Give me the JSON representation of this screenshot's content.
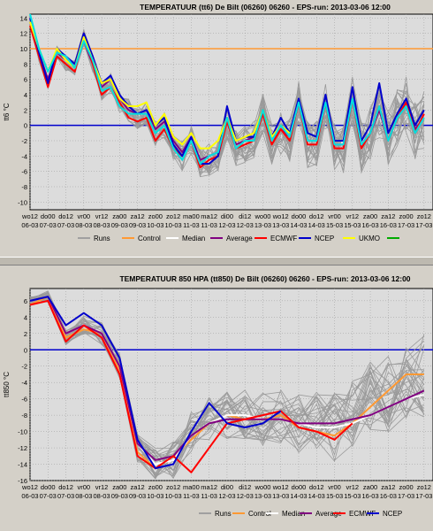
{
  "chart_data": [
    {
      "type": "line",
      "title": "TEMPERATUUR (tt6) De Bilt (06260) 06260 - EPS-run: 2013-03-06 12:00",
      "ylabel": "tt6 °C",
      "xlabel": "",
      "ylim": [
        -11,
        14.5
      ],
      "yticks": [
        14,
        12,
        10,
        8,
        6,
        4,
        2,
        0,
        -2,
        -4,
        -6,
        -8,
        -10
      ],
      "grid": true,
      "x_ticks_top": [
        "wo12",
        "do00",
        "do12",
        "vr00",
        "vr12",
        "za00",
        "za12",
        "zo00",
        "zo12",
        "ma00",
        "ma12",
        "di00",
        "di12",
        "wo00",
        "wo12",
        "do00",
        "do12",
        "vr00",
        "vr12",
        "za00",
        "za12",
        "zo00",
        "zo12"
      ],
      "x_ticks_bottom": [
        "06-03",
        "07-03",
        "07-03",
        "08-03",
        "08-03",
        "09-03",
        "09-03",
        "10-03",
        "10-03",
        "11-03",
        "11-03",
        "12-03",
        "12-03",
        "13-03",
        "13-03",
        "14-03",
        "14-03",
        "15-03",
        "15-03",
        "16-03",
        "16-03",
        "17-03",
        "17-03"
      ],
      "legend": [
        "Runs",
        "Control",
        "Median",
        "Average",
        "ECMWF",
        "NCEP",
        "UKMO",
        ""
      ],
      "legend_colors": [
        "#a0a0a0",
        "#ff9933",
        "#ffffff",
        "#800080",
        "#ff0000",
        "#0000cc",
        "#ffff00",
        "#00aa00"
      ],
      "hlines": [
        {
          "y": 10,
          "color": "#ff9933"
        },
        {
          "y": 0,
          "color": "#0000cc"
        }
      ],
      "series": [
        {
          "name": "Runs",
          "color": "#a0a0a0",
          "x": [
            0,
            1,
            2,
            3,
            4,
            5,
            6,
            7,
            8,
            9,
            10,
            11,
            12,
            13,
            14,
            15,
            16,
            17,
            18,
            19,
            20,
            21,
            22,
            23,
            24,
            25,
            26,
            27,
            28,
            29,
            30,
            31,
            32,
            33,
            34,
            35,
            36,
            37,
            38,
            39,
            40,
            41,
            42,
            43,
            44
          ],
          "values": [
            13.5,
            9,
            5.5,
            9.5,
            8,
            7.5,
            11.5,
            8,
            4.5,
            5.5,
            3,
            2,
            1,
            1.5,
            -1,
            0,
            -3,
            -4,
            -2,
            -5,
            -4.5,
            -4,
            0.5,
            -3,
            -2.5,
            -2,
            1.5,
            -2.5,
            -1,
            -2,
            3,
            -2.5,
            -2.5,
            2.5,
            -3,
            -3,
            3,
            -3,
            -1,
            2,
            -2,
            1,
            2.5,
            -1,
            0.5
          ]
        },
        {
          "name": "Median",
          "color": "#ffffff",
          "x": [
            0,
            1,
            2,
            3,
            4,
            5,
            6,
            7,
            8,
            9,
            10,
            11,
            12,
            13,
            14,
            15,
            16,
            17,
            18,
            19,
            20,
            21,
            22,
            23,
            24,
            25,
            26,
            27,
            28,
            29,
            30,
            31,
            32,
            33,
            34,
            35,
            36,
            37,
            38,
            39,
            40,
            41,
            42,
            43,
            44
          ],
          "values": [
            13.5,
            9.5,
            6,
            9.5,
            8.5,
            7.5,
            11,
            8,
            5,
            6,
            3.5,
            2,
            1.5,
            2,
            -0.5,
            0.5,
            -2,
            -3.5,
            -1.5,
            -4.5,
            -4,
            -3.5,
            1,
            -2.5,
            -2,
            -1.5,
            2,
            -2,
            -0.5,
            -1.5,
            3,
            -2,
            -2,
            3,
            -2.5,
            -2.5,
            3.5,
            -2.5,
            -1,
            2,
            -2,
            1,
            3,
            -0.5,
            1
          ]
        },
        {
          "name": "Average",
          "color": "#800080",
          "x": [
            0,
            1,
            2,
            3,
            4,
            5,
            6,
            7,
            8,
            9,
            10,
            11,
            12,
            13,
            14,
            15,
            16,
            17,
            18,
            19,
            20,
            21,
            22,
            23,
            24,
            25,
            26,
            27,
            28,
            29,
            30,
            31,
            32,
            33,
            34,
            35,
            36,
            37,
            38,
            39,
            40,
            41,
            42,
            43,
            44
          ],
          "values": [
            13.5,
            9.5,
            6,
            9.5,
            8.5,
            7.5,
            11,
            8,
            5,
            6,
            3.5,
            2,
            1.5,
            2,
            -0.5,
            0.5,
            -2,
            -3.5,
            -1.5,
            -4.5,
            -4,
            -3.5,
            1,
            -2.5,
            -2,
            -1.5,
            2,
            -2,
            -0.5,
            -1.5,
            3,
            -2,
            -2,
            3,
            -2.5,
            -2.5,
            3.5,
            -2.5,
            -1,
            2,
            -2,
            1,
            3,
            -0.5,
            1
          ]
        },
        {
          "name": "ECMWF",
          "color": "#ff0000",
          "x": [
            0,
            1,
            2,
            3,
            4,
            5,
            6,
            7,
            8,
            9,
            10,
            11,
            12,
            13,
            14,
            15,
            16,
            17,
            18,
            19,
            20,
            21,
            22,
            23,
            24,
            25,
            26,
            27,
            28,
            29,
            30,
            31,
            32,
            33,
            34,
            35,
            36,
            37,
            38,
            39,
            40,
            41,
            42,
            43,
            44
          ],
          "values": [
            13,
            9,
            5,
            9,
            8,
            7,
            12,
            8,
            4,
            5,
            3,
            1,
            0.5,
            1,
            -2,
            -0.5,
            -3,
            -4,
            -2,
            -5.5,
            -4.5,
            -4,
            0.5,
            -3,
            -2.5,
            -2,
            1.5,
            -2.5,
            -0.5,
            -2,
            3,
            -2.5,
            -2.5,
            3,
            -3,
            -3,
            3.5,
            -3,
            -1,
            2.5,
            -2,
            1,
            3,
            -1,
            1.5
          ]
        },
        {
          "name": "NCEP",
          "color": "#0000cc",
          "x": [
            0,
            1,
            2,
            3,
            4,
            5,
            6,
            7,
            8,
            9,
            10,
            11,
            12,
            13,
            14,
            15,
            16,
            17,
            18,
            19,
            20,
            21,
            22,
            23,
            24,
            25,
            26,
            27,
            28,
            29,
            30,
            31,
            32,
            33,
            34,
            35,
            36,
            37,
            38,
            39,
            40,
            41,
            42,
            43,
            44
          ],
          "values": [
            14,
            9.5,
            5.5,
            10,
            9,
            8,
            12,
            9,
            5.5,
            6.5,
            4,
            2.5,
            1.5,
            2,
            0,
            1,
            -2.5,
            -4,
            -1.5,
            -5,
            -5,
            -4,
            2.5,
            -2,
            -1.5,
            -1.5,
            2,
            -1.5,
            1,
            -1,
            3.5,
            -1,
            -1.5,
            4,
            -2,
            -2,
            5,
            -2,
            0,
            5.5,
            -1,
            1.5,
            3.5,
            0,
            2
          ]
        },
        {
          "name": "UKMO",
          "color": "#ffff00",
          "x": [
            0,
            1,
            2,
            3,
            4,
            5,
            6,
            7,
            8,
            9,
            10,
            11,
            12,
            13,
            14,
            15,
            16,
            17,
            18,
            19,
            20,
            21,
            22,
            23,
            24,
            25,
            26,
            27,
            28,
            29
          ],
          "values": [
            13.5,
            10,
            7,
            10,
            8.5,
            7.5,
            11.5,
            8.5,
            5.5,
            6,
            3.5,
            2.5,
            2.5,
            3,
            0,
            1.5,
            -1.5,
            -2.5,
            -1,
            -3,
            -3,
            -2,
            1,
            -2,
            -1.5,
            -1,
            2,
            -1.5,
            0,
            -1
          ]
        },
        {
          "name": "",
          "color": "#00e0e0",
          "x": [
            0,
            1,
            2,
            3,
            4,
            5,
            6,
            7,
            8,
            9,
            10,
            11,
            12,
            13,
            14,
            15,
            16,
            17,
            18,
            19,
            20,
            21,
            22,
            23,
            24,
            25,
            26,
            27,
            28,
            29,
            30,
            31,
            32,
            33,
            34,
            35,
            36,
            37,
            38,
            39,
            40,
            41,
            42,
            43,
            44
          ],
          "values": [
            14.5,
            10,
            7,
            9.5,
            9,
            7.5,
            11,
            8.5,
            4.5,
            5,
            2.5,
            1.5,
            1.5,
            1.5,
            -1,
            0,
            -3,
            -4.5,
            -2,
            -5,
            -4,
            -3.5,
            1,
            -3,
            -2,
            -2,
            2,
            -2,
            0,
            -1.5,
            3,
            -2,
            -2,
            3,
            -2.5,
            -2.5,
            3.5,
            -2.5,
            -1,
            2.5,
            -2,
            1,
            2.5,
            -1,
            1
          ]
        }
      ]
    },
    {
      "type": "line",
      "title": "TEMPERATUUR 850 HPA (tt850) De Bilt (06260) 06260 - EPS-run: 2013-03-06 12:00",
      "ylabel": "tt850 °C",
      "xlabel": "",
      "ylim": [
        -16,
        7.5
      ],
      "yticks": [
        6,
        4,
        2,
        0,
        -2,
        -4,
        -6,
        -8,
        -10,
        -12,
        -14,
        -16
      ],
      "grid": true,
      "x_ticks_top": [
        "wo12",
        "do00",
        "do12",
        "vr00",
        "vr12",
        "za00",
        "za12",
        "zo00",
        "zo12",
        "ma00",
        "ma12",
        "di00",
        "di12",
        "wo00",
        "wo12",
        "do00",
        "do12",
        "vr00",
        "vr12",
        "za00",
        "za12",
        "zo00",
        "zo12"
      ],
      "x_ticks_bottom": [
        "06-03",
        "07-03",
        "07-03",
        "08-03",
        "08-03",
        "09-03",
        "09-03",
        "10-03",
        "10-03",
        "11-03",
        "11-03",
        "12-03",
        "12-03",
        "13-03",
        "13-03",
        "14-03",
        "14-03",
        "15-03",
        "15-03",
        "16-03",
        "16-03",
        "17-03",
        "17-03"
      ],
      "legend": [
        "Runs",
        "Control",
        "Median",
        "Average",
        "ECMWF",
        "NCEP"
      ],
      "legend_colors": [
        "#a0a0a0",
        "#ff9933",
        "#ffffff",
        "#800080",
        "#ff0000",
        "#0000cc"
      ],
      "hlines": [
        {
          "y": 0,
          "color": "#0000cc"
        }
      ],
      "series": [
        {
          "name": "Runs",
          "color": "#a0a0a0",
          "x": [
            0,
            2,
            4,
            6,
            8,
            10,
            12,
            14,
            16,
            18,
            20,
            22,
            24,
            26,
            28,
            30,
            32,
            34,
            36,
            38,
            40,
            42,
            44
          ],
          "values": [
            6,
            6.5,
            1.5,
            3,
            2,
            -2,
            -12,
            -14,
            -13.5,
            -10,
            -8.5,
            -8,
            -8,
            -8.5,
            -8,
            -9,
            -9,
            -9.5,
            -8,
            -6,
            -5.5,
            -4,
            -3
          ]
        },
        {
          "name": "Control",
          "color": "#ff9933",
          "x": [
            0,
            2,
            4,
            6,
            8,
            10,
            12,
            14,
            16,
            18,
            20,
            22,
            24,
            26,
            28,
            30,
            32,
            34,
            36,
            38,
            40,
            42,
            44
          ],
          "values": [
            5.5,
            6.5,
            1.5,
            2.5,
            2,
            -2.5,
            -12.5,
            -14.5,
            -13,
            -11,
            -9,
            -8,
            -8.5,
            -8.5,
            -8,
            -9.5,
            -10,
            -10.5,
            -9,
            -7,
            -5,
            -3,
            -3
          ]
        },
        {
          "name": "Median",
          "color": "#ffffff",
          "x": [
            0,
            2,
            4,
            6,
            8,
            10,
            12,
            14,
            16,
            18,
            20,
            22,
            24,
            26,
            28,
            30,
            32,
            34,
            36,
            38,
            40,
            42,
            44
          ],
          "values": [
            6,
            6.5,
            2,
            3,
            2,
            -2,
            -11.5,
            -14,
            -13.5,
            -10.5,
            -9,
            -8,
            -8,
            -8.5,
            -8.5,
            -9,
            -9.5,
            -9.5,
            -9,
            -8,
            -7,
            -6,
            -5.5
          ]
        },
        {
          "name": "Average",
          "color": "#800080",
          "x": [
            0,
            2,
            4,
            6,
            8,
            10,
            12,
            14,
            16,
            18,
            20,
            22,
            24,
            26,
            28,
            30,
            32,
            34,
            36,
            38,
            40,
            42,
            44
          ],
          "values": [
            6,
            6.5,
            2,
            3,
            2,
            -2,
            -11.5,
            -13.5,
            -13,
            -10.5,
            -9,
            -8.5,
            -8.5,
            -8.5,
            -8.5,
            -9,
            -9,
            -9,
            -8.5,
            -8,
            -7,
            -6,
            -5
          ]
        },
        {
          "name": "ECMWF",
          "color": "#ff0000",
          "x": [
            0,
            2,
            4,
            6,
            8,
            10,
            12,
            14,
            16,
            18,
            20,
            22,
            24,
            26,
            28,
            30,
            32,
            34,
            36
          ],
          "values": [
            5.5,
            6,
            1,
            3,
            1.5,
            -3,
            -13,
            -14.5,
            -13,
            -15,
            -12,
            -9,
            -8.5,
            -8,
            -7.5,
            -9.5,
            -10,
            -11,
            -9
          ]
        },
        {
          "name": "NCEP",
          "color": "#0000cc",
          "x": [
            0,
            2,
            4,
            6,
            8,
            10,
            12,
            14,
            16,
            18,
            20,
            22,
            24,
            26,
            28
          ],
          "values": [
            6,
            6.5,
            3,
            4.5,
            3,
            -1,
            -11,
            -14.5,
            -14,
            -10,
            -6.5,
            -9,
            -9.5,
            -9,
            -7.5
          ]
        }
      ]
    }
  ]
}
